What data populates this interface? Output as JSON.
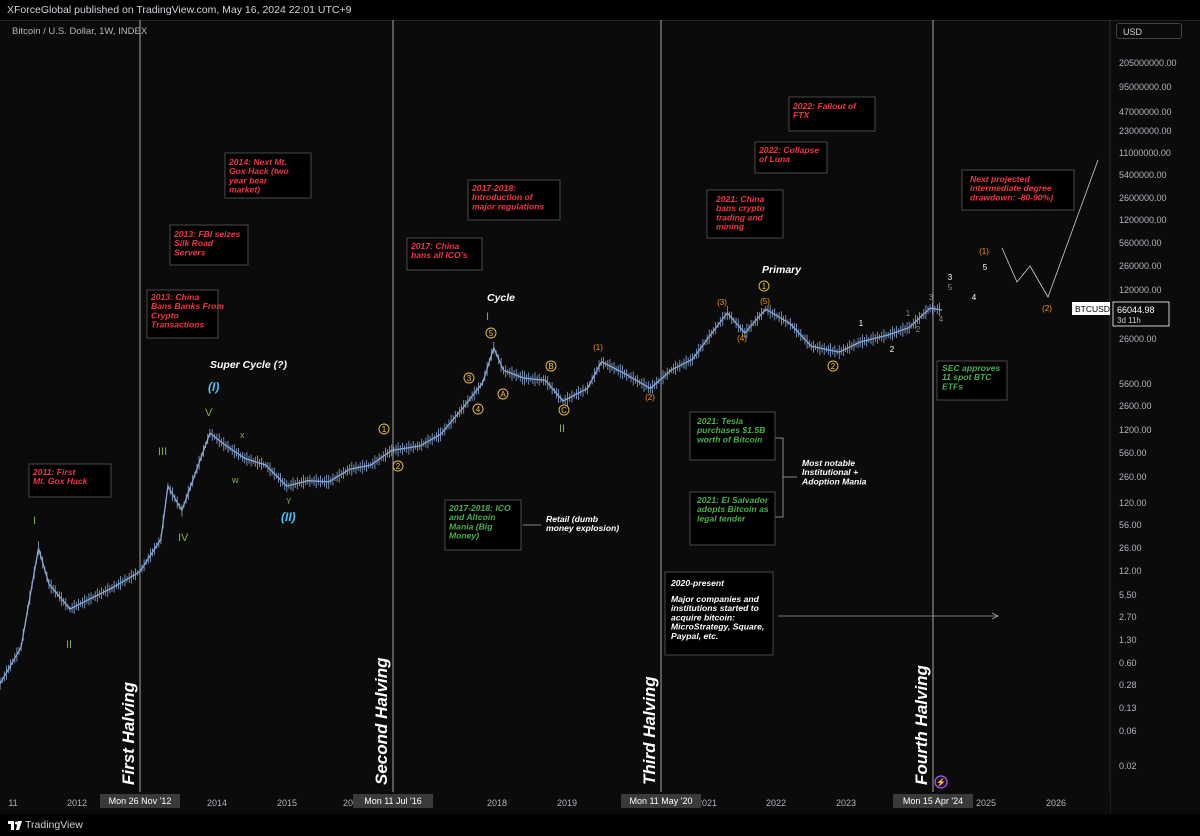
{
  "header": {
    "published": "XForceGlobal published on TradingView.com, May 16, 2024 22:01 UTC+9",
    "symbol": "Bitcoin / U.S. Dollar, 1W, INDEX",
    "currency": "USD"
  },
  "footer": {
    "brand": "TradingView"
  },
  "price_label": {
    "ticker": "BTCUSD",
    "price": "66044.98",
    "countdown": "3d 11h"
  },
  "chart_data": {
    "type": "line",
    "title": "",
    "ylabel": "",
    "y_scale": "log",
    "y_ticks": [
      "205000000.00",
      "95000000.00",
      "47000000.00",
      "23000000.00",
      "11000000.00",
      "5400000.00",
      "2600000.00",
      "1200000.00",
      "560000.00",
      "260000.00",
      "120000.00",
      "26000.00",
      "5600.00",
      "2600.00",
      "1200.00",
      "560.00",
      "260.00",
      "120.00",
      "56.00",
      "26.00",
      "12.00",
      "5.50",
      "2.70",
      "1.30",
      "0.60",
      "0.28",
      "0.13",
      "0.06",
      "0.02"
    ],
    "x_ticks": [
      "11",
      "2012",
      "2013",
      "2014",
      "2015",
      "20",
      "7",
      "2018",
      "2019",
      "2021",
      "2022",
      "2023",
      "2025",
      "2026"
    ],
    "halvings": [
      {
        "date_label": "Mon 26 Nov '12",
        "label": "First Halving"
      },
      {
        "date_label": "Mon 11 Jul '16",
        "label": "Second Halving"
      },
      {
        "date_label": "Mon 11 May '20",
        "label": "Third Halving"
      },
      {
        "date_label": "Mon 15 Apr '24",
        "label": "Fourth Halving"
      }
    ],
    "series": [
      {
        "name": "BTCUSD",
        "x": [
          2010.6,
          2010.9,
          2011.2,
          2011.45,
          2011.6,
          2011.9,
          2012.2,
          2012.5,
          2012.9,
          2013.2,
          2013.3,
          2013.5,
          2013.9,
          2014.1,
          2014.4,
          2014.7,
          2015.0,
          2015.3,
          2015.6,
          2015.9,
          2016.2,
          2016.5,
          2016.9,
          2017.2,
          2017.5,
          2017.8,
          2017.96,
          2018.1,
          2018.4,
          2018.7,
          2018.95,
          2019.3,
          2019.5,
          2019.8,
          2020.2,
          2020.5,
          2020.8,
          2021.1,
          2021.3,
          2021.55,
          2021.85,
          2022.2,
          2022.5,
          2022.9,
          2023.2,
          2023.6,
          2023.9,
          2024.2,
          2024.37
        ],
        "y": [
          0.06,
          0.3,
          1.0,
          26,
          8,
          3.5,
          5,
          7,
          12,
          35,
          200,
          90,
          1150,
          800,
          500,
          400,
          200,
          240,
          230,
          350,
          400,
          650,
          750,
          1100,
          2500,
          6000,
          19000,
          9000,
          7000,
          6500,
          3300,
          5000,
          12000,
          8500,
          5000,
          9200,
          13000,
          33000,
          60000,
          31000,
          68000,
          42000,
          20000,
          16500,
          23000,
          29000,
          37000,
          70000,
          66044.98
        ]
      }
    ],
    "annotations": {
      "red": [
        {
          "id": "a2011",
          "text": "2011: First Mt. Gox Hack"
        },
        {
          "id": "a2013c",
          "text": "2013: China Bans Banks From Crypto Transactions"
        },
        {
          "id": "a2013f",
          "text": "2013: FBI seizes Silk Road Servers"
        },
        {
          "id": "a2014",
          "text": "2014: Next Mt. Gox Hack (two year bear market)"
        },
        {
          "id": "a2017c",
          "text": "2017: China bans all ICO's"
        },
        {
          "id": "a2017r",
          "text": "2017-2018: Introduction of major regulations"
        },
        {
          "id": "a2021c",
          "text": "2021: China bans crypto trading and mining"
        },
        {
          "id": "a2022l",
          "text": "2022: Collapse of Luna"
        },
        {
          "id": "a2022f",
          "text": "2022: Fallout of FTX"
        },
        {
          "id": "anext",
          "text": "Next projected intermediate degree drawdown: -80-90%)"
        }
      ],
      "green": [
        {
          "id": "gico",
          "text": "2017-2018: ICO and Altcoin Mania (Big Money)"
        },
        {
          "id": "gtesla",
          "text": "2021: Tesla purchases $1.5B worth of Bitcoin"
        },
        {
          "id": "gels",
          "text": "2021: El Salvador adopts Bitcoin as legal tender"
        },
        {
          "id": "gsec",
          "text": "SEC approves 11 spot BTC ETFs"
        }
      ],
      "white": [
        {
          "id": "wretail",
          "text": "Retail (dumb money explosion)"
        },
        {
          "id": "wnotable",
          "text": "Most notable Institutional + Adoption Mania"
        },
        {
          "id": "w2020",
          "text": "2020-present"
        },
        {
          "id": "w2020b",
          "text": "Major companies and institutions started to acquire bitcoin: MicroStrategy, Square, Paypal, etc."
        }
      ],
      "degrees": {
        "super_cycle": "Super Cycle (?)",
        "cycle": "Cycle",
        "primary": "Primary"
      }
    },
    "colors": {
      "candle": "#8aa9d6",
      "red_text": "#f23645",
      "green_text": "#4caf50",
      "orange": "#ff9800",
      "yellow": "#f5c542",
      "cyan": "#4fc3f7",
      "wave_green": "#7cb342"
    }
  }
}
